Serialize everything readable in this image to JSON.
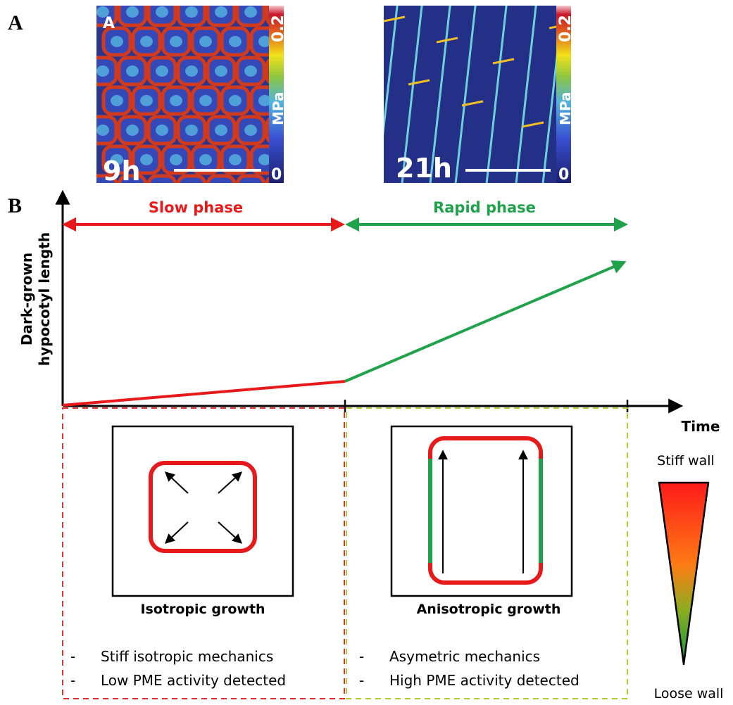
{
  "panels": {
    "a_letter": "A",
    "b_letter": "B"
  },
  "panel_a": {
    "left_image": {
      "inset_letter": "A",
      "time_label": "9h",
      "scale_max": "0.2",
      "scale_unit": "MPa",
      "scale_min": "0"
    },
    "right_image": {
      "time_label": "21h",
      "scale_max": "0.2",
      "scale_unit": "MPa",
      "scale_min": "0"
    }
  },
  "panel_b": {
    "y_axis_label_line1": "Dark-grown",
    "y_axis_label_line2": "hypocotyl length",
    "x_axis_label": "Time",
    "slow_phase_label": "Slow phase",
    "rapid_phase_label": "Rapid phase",
    "isotropic": {
      "caption": "Isotropic growth",
      "bullets": [
        "Stiff isotropic mechanics",
        "Low PME activity detected"
      ]
    },
    "anisotropic": {
      "caption": "Anisotropic growth",
      "bullets": [
        "Asymetric mechanics",
        "High PME activity detected"
      ]
    },
    "legend": {
      "top_label": "Stiff wall",
      "bottom_label": "Loose wall"
    }
  },
  "colors": {
    "slow": "#e8191b",
    "rapid": "#1fa24a",
    "dash_slow": "#e03030",
    "dash_rapid": "#b5cc3a",
    "map_background": "#2a3590"
  }
}
